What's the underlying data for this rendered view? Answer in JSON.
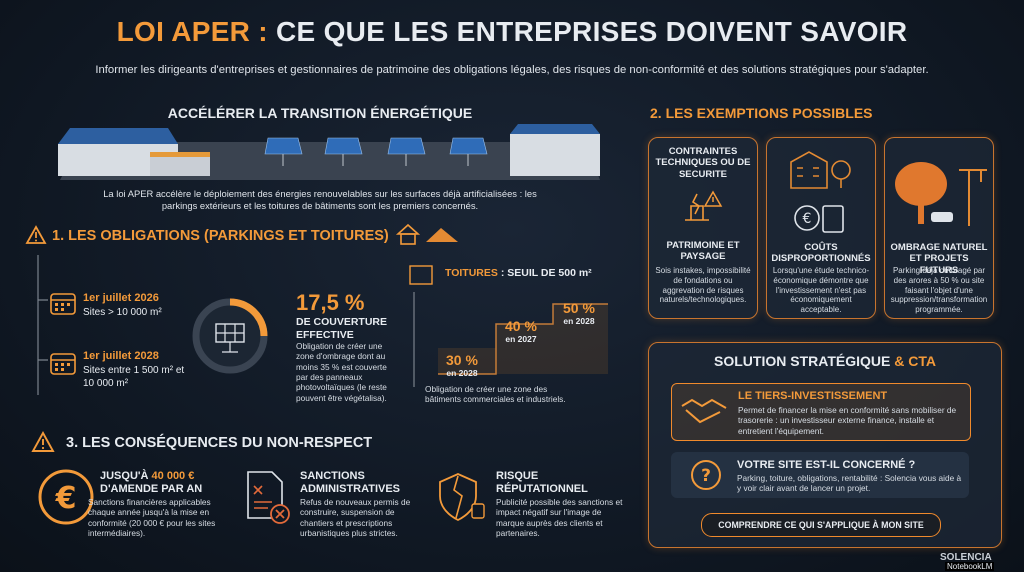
{
  "header": {
    "title_highlight": "LOI APER :",
    "title": "CE QUE LES ENTREPRISES DOIVENT SAVOIR",
    "subtitle": "Informer les dirigeants d'entreprises et gestionnaires de patrimoine des obligations légales, des risques de non-conformité et des solutions stratégiques pour s'adapter."
  },
  "hero": {
    "title": "ACCÉLÉRER LA TRANSITION ÉNERGÉTIQUE",
    "text": "La loi APER accélère le déploiement des énergies renouvelables sur les surfaces déjà artificialisées : les parkings extérieurs et les toitures de bâtiments sont les premiers concernés."
  },
  "obligations": {
    "title": "1. LES OBLIGATIONS (PARKINGS ET TOITURES)",
    "deadlines": [
      {
        "date": "1er juillet 2026",
        "sites": "Sites > 10 000 m²"
      },
      {
        "date": "1er juillet 2028",
        "sites": "Sites entre 1 500 m² et 10 000 m²"
      }
    ],
    "coverage": {
      "value": "17,5 %",
      "label": "DE COUVERTURE EFFECTIVE",
      "text": "Obligation de créer une zone d'ombrage dont au moins 35 % est couverte par des panneaux photovoltaïques (le reste pouvent être végétalisa)."
    },
    "roofs": {
      "title_highlight": "TOITURES",
      "title": ": SEUIL DE 500 m²",
      "steps": [
        {
          "value": "30 %",
          "year": "en 2028"
        },
        {
          "value": "40 %",
          "year": "en 2027"
        },
        {
          "value": "50 %",
          "year": "en 2028"
        }
      ],
      "text": "Obligation de créer une zone des bâtiments commerciales et industriels."
    }
  },
  "exemptions": {
    "title": "2. LES EXEMPTIONS POSSIBLES",
    "cards": [
      {
        "top": "CONTRAINTES TECHNIQUES OU DE SECURITE",
        "title": "PATRIMOINE ET PAYSAGE",
        "text": "Sois instakes, impossibilité de fondations ou aggrevation de risques naturels/technologiques."
      },
      {
        "title": "COÛTS DISPROPORTIONNÉS",
        "text": "Lorsqu'une étude technico-économique démontre que l'investissement n'est pas économiquement acceptable."
      },
      {
        "title": "OMBRAGE NATUREL ET PROJETS FUTURS",
        "text": "Parking déjà ombragé par des arores à 50 % ou site faisant l'objet d'une suppression/transformation programmée."
      }
    ]
  },
  "solution": {
    "title": "SOLUTION STRATÉGIQUE",
    "title_highlight": "& CTA",
    "offer_title": "LE TIERS-INVESTISSEMENT",
    "offer_text": "Permet de financer la mise en conformité sans mobiliser de trasorerie : un investisseur externe finance, installe et entretient l'équipement.",
    "question_title": "VOTRE SITE EST-IL CONCERNÉ ?",
    "question_text": "Parking, toiture, obligations, rentabilité : Solencia vous aide à y voir clair avant de lancer un projet.",
    "button": "COMPRENDRE CE QUI S'APPLIQUE À MON SITE"
  },
  "consequences": {
    "title": "3. LES CONSÉQUENCES DU NON-RESPECT",
    "fine_prefix": "JUSQU'À",
    "fine_amount": "40 000 €",
    "fine_suffix": "D'AMENDE PAR AN",
    "fine_text": "Sanctions financières applicables chaque année jusqu'à la mise en conformité (20 000 € pour les sites intermédiaires).",
    "admin_title": "SANCTIONS ADMINISTRATIVES",
    "admin_text": "Refus de nouveaux permis de construire, suspension de chantiers et prescriptions urbanistiques plus strictes.",
    "reputation_title": "RISQUE RÉPUTATIONNEL",
    "reputation_text": "Publicité possible des sanctions et impact négatif sur l'image de marque auprès des clients et partenaires."
  },
  "footer": {
    "brand": "SOLENCIA",
    "watermark": "NotebookLM"
  }
}
